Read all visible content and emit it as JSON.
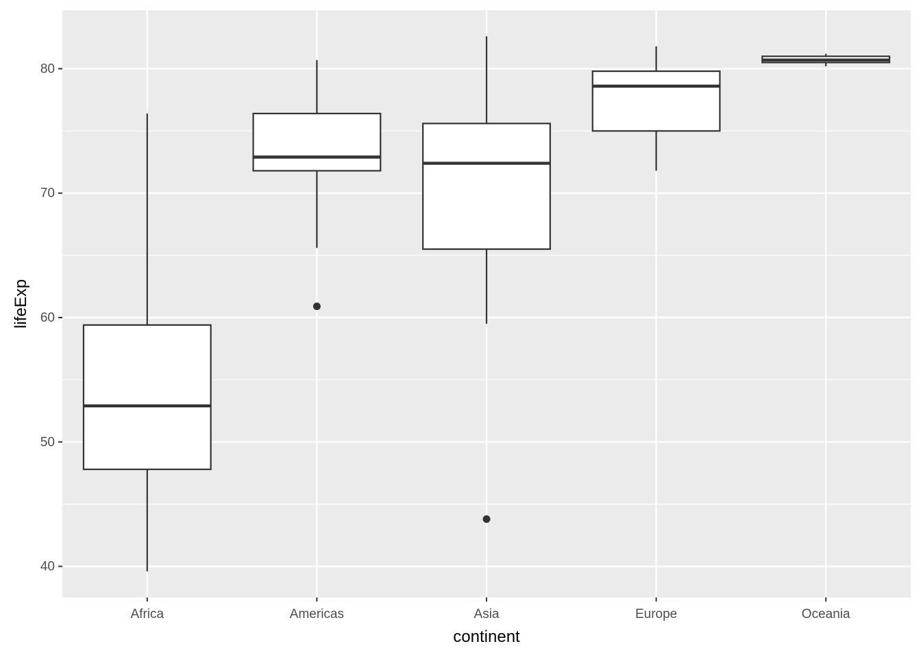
{
  "chart_data": {
    "type": "boxplot",
    "xlabel": "continent",
    "ylabel": "lifeExp",
    "ylim": [
      37.5,
      84.7
    ],
    "y_ticks": [
      40,
      50,
      60,
      70,
      80
    ],
    "grid": true,
    "categories": [
      "Africa",
      "Americas",
      "Asia",
      "Europe",
      "Oceania"
    ],
    "boxes": [
      {
        "category": "Africa",
        "lower_whisker": 39.6,
        "q1": 47.8,
        "median": 52.9,
        "q3": 59.4,
        "upper_whisker": 76.4,
        "outliers": []
      },
      {
        "category": "Americas",
        "lower_whisker": 65.6,
        "q1": 71.8,
        "median": 72.9,
        "q3": 76.4,
        "upper_whisker": 80.7,
        "outliers": [
          60.9
        ]
      },
      {
        "category": "Asia",
        "lower_whisker": 59.5,
        "q1": 65.5,
        "median": 72.4,
        "q3": 75.6,
        "upper_whisker": 82.6,
        "outliers": [
          43.8
        ]
      },
      {
        "category": "Europe",
        "lower_whisker": 71.8,
        "q1": 75.0,
        "median": 78.6,
        "q3": 79.8,
        "upper_whisker": 81.8,
        "outliers": []
      },
      {
        "category": "Oceania",
        "lower_whisker": 80.2,
        "q1": 80.5,
        "median": 80.7,
        "q3": 81.0,
        "upper_whisker": 81.2,
        "outliers": []
      }
    ],
    "colors": {
      "panel": "#ebebeb",
      "grid": "#ffffff",
      "box_fill": "#ffffff",
      "box_line": "#333333",
      "tick_text": "#4d4d4d"
    }
  }
}
